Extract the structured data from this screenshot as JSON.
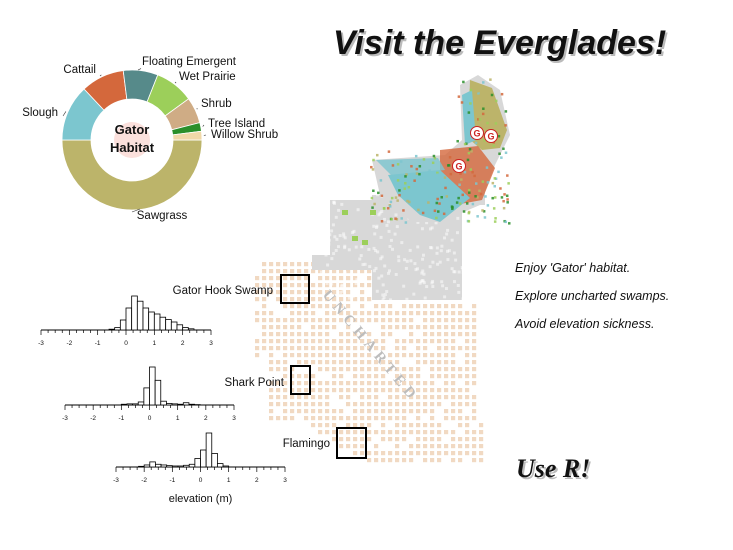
{
  "header": {
    "title": "Visit the Everglades!"
  },
  "taglines": [
    "Enjoy 'Gator' habitat.",
    "Explore uncharted swamps.",
    "Avoid elevation sickness."
  ],
  "footer": {
    "slogan": "Use R!"
  },
  "map": {
    "uncharted_label": "UNCHARTED",
    "gator_marker": "G",
    "sites": [
      "Gator Hook Swamp",
      "Shark Point",
      "Flamingo"
    ],
    "colors": {
      "sawgrass": "#bcb46a",
      "slough": "#7cc6cf",
      "cattail": "#d4683c",
      "floating": "#568a8a",
      "wet_prairie": "#9ccf5a",
      "shrub": "#cfac85",
      "tree_island": "#2a8f2a",
      "uncharted": "#f1d9c2",
      "unclassified": "#d8d8d8",
      "site_box": "#000000",
      "gator_marker": "#cc2222"
    }
  },
  "chart_data": [
    {
      "type": "pie",
      "style": "donut",
      "center_label": [
        "Gator",
        "Habitat"
      ],
      "slices": [
        {
          "name": "Sawgrass",
          "value": 50.0,
          "color": "#bcb46a"
        },
        {
          "name": "Slough",
          "value": 13.0,
          "color": "#7cc6cf"
        },
        {
          "name": "Cattail",
          "value": 10.0,
          "color": "#d4683c"
        },
        {
          "name": "Floating Emergent",
          "value": 8.0,
          "color": "#568a8a"
        },
        {
          "name": "Wet Prairie",
          "value": 9.0,
          "color": "#9ccf5a"
        },
        {
          "name": "Shrub",
          "value": 6.0,
          "color": "#cfac85"
        },
        {
          "name": "Tree Island",
          "value": 2.0,
          "color": "#2a8f2a"
        },
        {
          "name": "Willow Shrub",
          "value": 2.0,
          "color": "#f0d8a8"
        }
      ]
    },
    {
      "type": "bar",
      "subtype": "histogram",
      "site": "Gator Hook Swamp",
      "xlim": [
        -3,
        3
      ],
      "xticks": [
        -3,
        -2,
        -1,
        0,
        1,
        2,
        3
      ],
      "bin_width": 0.2,
      "bins_start": -0.6,
      "values": [
        0.02,
        0.06,
        0.25,
        0.55,
        0.85,
        0.72,
        0.55,
        0.45,
        0.4,
        0.32,
        0.26,
        0.2,
        0.13,
        0.06,
        0.03
      ]
    },
    {
      "type": "bar",
      "subtype": "histogram",
      "site": "Shark Point",
      "xlim": [
        -3,
        3
      ],
      "xticks": [
        -3,
        -2,
        -1,
        0,
        1,
        2,
        3
      ],
      "bin_width": 0.2,
      "bins_start": -1.0,
      "values": [
        0.02,
        0.03,
        0.03,
        0.08,
        0.45,
        1.0,
        0.65,
        0.1,
        0.04,
        0.03,
        0.02,
        0.06,
        0.02,
        0.01
      ]
    },
    {
      "type": "bar",
      "subtype": "histogram",
      "site": "Flamingo",
      "xlim": [
        -3,
        3
      ],
      "xticks": [
        -3,
        -2,
        -1,
        0,
        1,
        2,
        3
      ],
      "bin_width": 0.2,
      "bins_start": -2.2,
      "xlabel": "elevation (m)",
      "values": [
        0.02,
        0.06,
        0.15,
        0.08,
        0.06,
        0.04,
        0.03,
        0.03,
        0.05,
        0.08,
        0.25,
        0.5,
        1.0,
        0.4,
        0.1,
        0.03
      ]
    }
  ]
}
